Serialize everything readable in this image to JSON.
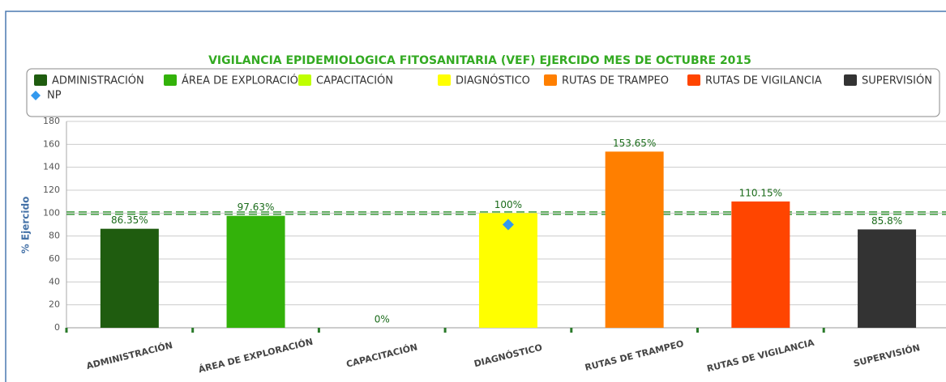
{
  "chart_data": {
    "type": "bar",
    "title": "VIGILANCIA EPIDEMIOLOGICA FITOSANITARIA (VEF) EJERCIDO MES DE OCTUBRE 2015",
    "ylabel": "% Ejercido",
    "categories": [
      "ADMINISTRACIÓN",
      "ÁREA DE EXPLORACIÓN",
      "CAPACITACIÓN",
      "DIAGNÓSTICO",
      "RUTAS DE TRAMPEO",
      "RUTAS DE VIGILANCIA",
      "SUPERVISIÓN"
    ],
    "values": [
      86.35,
      97.63,
      0,
      100,
      153.65,
      110.15,
      85.8
    ],
    "value_labels": [
      "86.35%",
      "97.63%",
      "0%",
      "100%",
      "153.65%",
      "110.15%",
      "85.8%"
    ],
    "colors": [
      "#1f5c0f",
      "#33b20a",
      "#bfff00",
      "#ffff00",
      "#ff7f00",
      "#ff4500",
      "#333333"
    ],
    "series": [
      {
        "name": "NP",
        "type": "scatter",
        "color": "#3399ee",
        "values": [
          null,
          null,
          null,
          90,
          null,
          null,
          null
        ]
      }
    ],
    "reference_line": 100,
    "ylim": [
      0,
      180
    ],
    "yticks": [
      0,
      20,
      40,
      60,
      80,
      100,
      120,
      140,
      160,
      180
    ],
    "grid": true,
    "legend": "top"
  }
}
